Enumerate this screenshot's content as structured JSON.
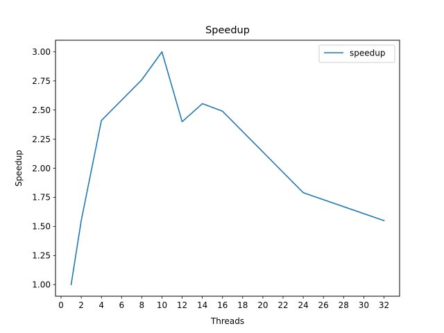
{
  "chart_data": {
    "type": "line",
    "title": "Speedup",
    "xlabel": "Threads",
    "ylabel": "Speedup",
    "xlim": [
      -0.55,
      33.55
    ],
    "ylim": [
      0.9,
      3.1
    ],
    "xticks": [
      0,
      2,
      4,
      6,
      8,
      10,
      12,
      14,
      16,
      18,
      20,
      22,
      24,
      26,
      28,
      30,
      32
    ],
    "yticks": [
      "1.00",
      "1.25",
      "1.50",
      "1.75",
      "2.00",
      "2.25",
      "2.50",
      "2.75",
      "3.00"
    ],
    "grid": false,
    "legend_position": "top-right",
    "series": [
      {
        "name": "speedup",
        "color": "#1f77b4",
        "x": [
          1,
          2,
          4,
          8,
          10,
          12,
          14,
          16,
          24,
          32
        ],
        "y": [
          1.0,
          1.55,
          2.41,
          2.76,
          3.0,
          2.4,
          2.555,
          2.49,
          1.79,
          1.55
        ]
      }
    ]
  }
}
